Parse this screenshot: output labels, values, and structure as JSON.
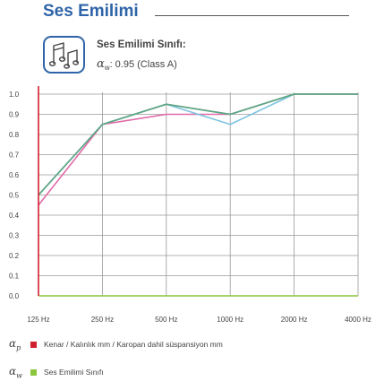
{
  "header": {
    "title": "Ses Emilimi",
    "icon": "music-notes-icon",
    "rating_heading": "Ses Emilimi Sınıfı:",
    "rating_symbol": "α",
    "rating_symbol_sub": "w",
    "rating_value": ": 0.95 (Class A)"
  },
  "chart_data": {
    "type": "line",
    "categories": [
      "125 Hz",
      "250 Hz",
      "500 Hz",
      "1000 Hz",
      "2000 Hz",
      "4000 Hz"
    ],
    "y_ticks": [
      "0.0",
      "0.1",
      "0.2",
      "0.3",
      "0.4",
      "0.5",
      "0.6",
      "0.7",
      "0.8",
      "0.9",
      "1.0"
    ],
    "ylim": [
      0,
      1.0
    ],
    "grid": true,
    "series": [
      {
        "color": "#e06aa8",
        "values": [
          0.45,
          0.85,
          0.9,
          0.9,
          1.0,
          1.0
        ]
      },
      {
        "color": "#7dc4e0",
        "values": [
          0.5,
          0.85,
          0.95,
          0.85,
          1.0,
          1.0
        ]
      },
      {
        "color": "#8ec7a0",
        "values": [
          0.5,
          0.85,
          0.95,
          0.9,
          1.0,
          1.0
        ]
      },
      {
        "color": "#9a8a7c",
        "values": [
          0.5,
          0.85,
          0.95,
          0.9,
          1.0,
          1.0
        ]
      },
      {
        "color": "#5aa888",
        "values": [
          0.5,
          0.85,
          0.95,
          0.9,
          1.0,
          1.0
        ]
      }
    ],
    "y_axis_color": "#d0202e",
    "x_axis_color": "#8cc63f"
  },
  "legend": [
    {
      "symbol": "α",
      "sub": "p",
      "color": "#d0202e",
      "label": "Kenar / Kalınlık mm / Karopan dahil süspansiyon mm"
    },
    {
      "symbol": "α",
      "sub": "w",
      "color": "#8cc63f",
      "label": "Ses Emilimi Sınıfı"
    }
  ]
}
